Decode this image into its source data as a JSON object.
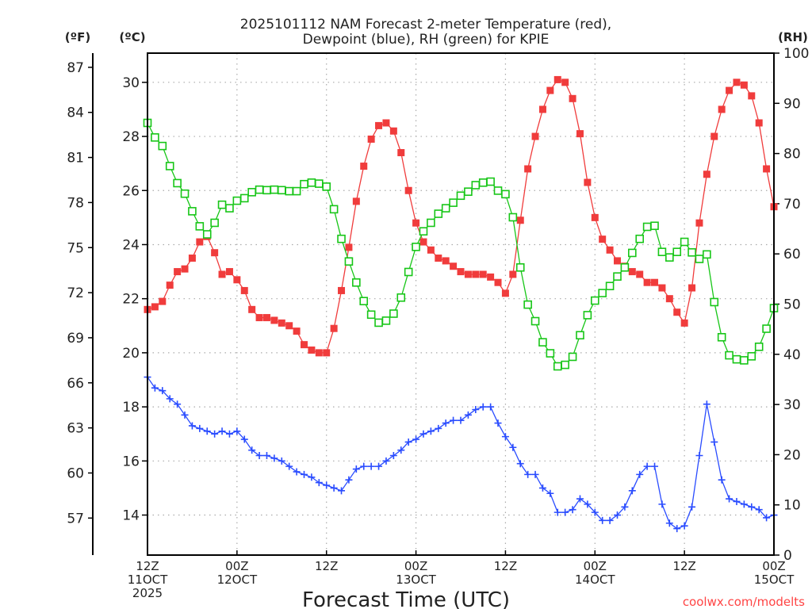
{
  "chart_data": {
    "type": "line",
    "title": [
      "2025101112 NAM Forecast 2-meter Temperature (red),",
      "Dewpoint (blue), RH (green) for KPIE"
    ],
    "xlabel": "Forecast Time (UTC)",
    "unit_labels": {
      "fahrenheit": "(ºF)",
      "celsius": "(ºC)",
      "rh": "(RH)"
    },
    "credit": "coolwx.com/modelts",
    "x_hours_from_start": {
      "start": 0,
      "end": 84,
      "step": 1
    },
    "x_ticks": [
      {
        "hour": 0,
        "lines": [
          "12Z",
          "11OCT",
          "2025"
        ]
      },
      {
        "hour": 12,
        "lines": [
          "00Z",
          "12OCT"
        ]
      },
      {
        "hour": 24,
        "lines": [
          "12Z"
        ]
      },
      {
        "hour": 36,
        "lines": [
          "00Z",
          "13OCT"
        ]
      },
      {
        "hour": 48,
        "lines": [
          "12Z"
        ]
      },
      {
        "hour": 60,
        "lines": [
          "00Z",
          "14OCT"
        ]
      },
      {
        "hour": 72,
        "lines": [
          "12Z"
        ]
      },
      {
        "hour": 84,
        "lines": [
          "00Z",
          "15OCT"
        ]
      }
    ],
    "y_celsius": {
      "range": [
        12.52,
        31.08
      ],
      "ticks": [
        14,
        16,
        18,
        20,
        22,
        24,
        26,
        28,
        30
      ]
    },
    "y_fahrenheit": {
      "ticks": [
        57,
        60,
        63,
        66,
        69,
        72,
        75,
        78,
        81,
        84,
        87
      ]
    },
    "y_rh": {
      "range": [
        0,
        100
      ],
      "ticks": [
        0,
        10,
        20,
        30,
        40,
        50,
        60,
        70,
        80,
        90,
        100
      ]
    },
    "grid": true,
    "colors": {
      "temperature": "#f03c3c",
      "dewpoint": "#2a4cff",
      "rh": "#17c617",
      "credit": "#ff4444"
    },
    "series": [
      {
        "name": "Temperature",
        "unit": "C",
        "axis": "celsius",
        "marker": "filled-square",
        "values": [
          21.6,
          21.7,
          21.9,
          22.5,
          23.0,
          23.1,
          23.5,
          24.1,
          24.3,
          23.7,
          22.9,
          23.0,
          22.7,
          22.3,
          21.6,
          21.3,
          21.3,
          21.2,
          21.1,
          21.0,
          20.8,
          20.3,
          20.1,
          20.0,
          20.0,
          20.9,
          22.3,
          23.9,
          25.6,
          26.9,
          27.9,
          28.4,
          28.5,
          28.2,
          27.4,
          26.0,
          24.8,
          24.1,
          23.8,
          23.5,
          23.4,
          23.2,
          23.0,
          22.9,
          22.9,
          22.9,
          22.8,
          22.6,
          22.2,
          22.9,
          24.9,
          26.8,
          28.0,
          29.0,
          29.7,
          30.1,
          30.0,
          29.4,
          28.1,
          26.3,
          25.0,
          24.2,
          23.8,
          23.4,
          23.2,
          23.0,
          22.9,
          22.6,
          22.6,
          22.4,
          22.0,
          21.5,
          21.1,
          22.4,
          24.8,
          26.6,
          28.0,
          29.0,
          29.7,
          30.0,
          29.9,
          29.5,
          28.5,
          26.8,
          25.4
        ]
      },
      {
        "name": "Dewpoint",
        "unit": "C",
        "axis": "celsius",
        "marker": "plus",
        "values": [
          19.1,
          18.7,
          18.6,
          18.3,
          18.1,
          17.7,
          17.3,
          17.2,
          17.1,
          17.0,
          17.1,
          17.0,
          17.1,
          16.8,
          16.4,
          16.2,
          16.2,
          16.1,
          16.0,
          15.8,
          15.6,
          15.5,
          15.4,
          15.2,
          15.1,
          15.0,
          14.9,
          15.3,
          15.7,
          15.8,
          15.8,
          15.8,
          16.0,
          16.2,
          16.4,
          16.7,
          16.8,
          17.0,
          17.1,
          17.2,
          17.4,
          17.5,
          17.5,
          17.7,
          17.9,
          18.0,
          18.0,
          17.4,
          16.9,
          16.5,
          15.9,
          15.5,
          15.5,
          15.0,
          14.8,
          14.1,
          14.1,
          14.2,
          14.6,
          14.4,
          14.1,
          13.8,
          13.8,
          14.0,
          14.3,
          14.9,
          15.5,
          15.8,
          15.8,
          14.4,
          13.7,
          13.5,
          13.6,
          14.3,
          16.2,
          18.1,
          16.7,
          15.3,
          14.6,
          14.5,
          14.4,
          14.3,
          14.2,
          13.9,
          14.0
        ]
      },
      {
        "name": "RH",
        "unit": "%",
        "axis": "rh",
        "marker": "hollow-square",
        "values": [
          86.1,
          83.2,
          81.5,
          77.5,
          74.1,
          72.0,
          68.5,
          65.5,
          63.9,
          66.2,
          69.8,
          69.1,
          70.6,
          71.1,
          72.3,
          72.8,
          72.7,
          72.8,
          72.7,
          72.5,
          72.5,
          73.9,
          74.2,
          74.0,
          73.4,
          68.9,
          63.0,
          58.5,
          54.3,
          50.6,
          47.9,
          46.3,
          46.7,
          48.1,
          51.3,
          56.4,
          61.4,
          64.5,
          66.2,
          68.0,
          69.1,
          70.2,
          71.6,
          72.4,
          73.7,
          74.2,
          74.4,
          72.6,
          71.9,
          67.3,
          57.3,
          49.9,
          46.6,
          42.4,
          40.2,
          37.6,
          37.9,
          39.5,
          43.8,
          47.8,
          50.7,
          52.2,
          53.6,
          55.5,
          57.3,
          60.2,
          63.0,
          65.4,
          65.6,
          60.4,
          59.3,
          60.4,
          62.4,
          60.3,
          59.0,
          59.9,
          50.4,
          43.4,
          39.8,
          39.0,
          38.8,
          39.6,
          41.5,
          45.1,
          49.2
        ]
      }
    ]
  }
}
